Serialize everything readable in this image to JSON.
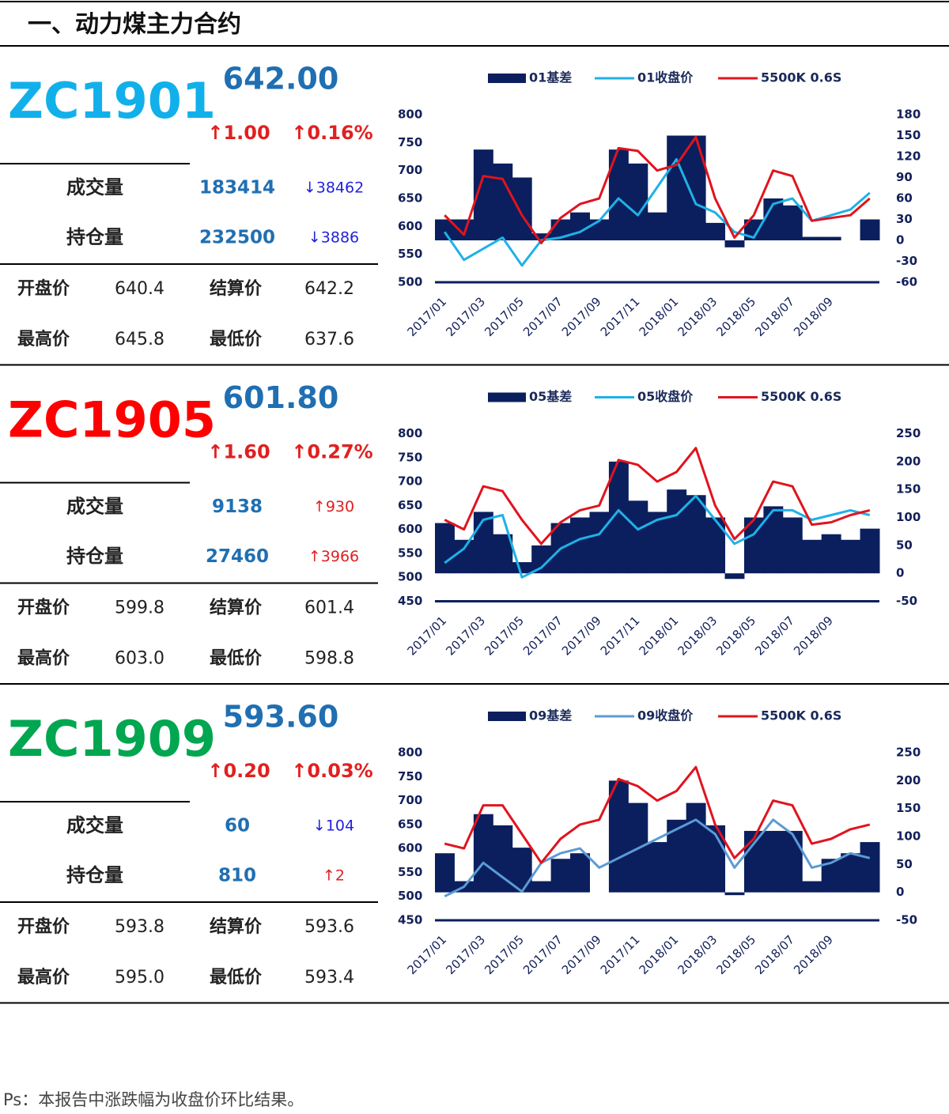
{
  "header": {
    "title": "一、动力煤主力合约"
  },
  "panels": [
    {
      "code": "ZC1901",
      "code_color": "#12b0ea",
      "price": "642.00",
      "change": "↑1.00",
      "change_pct": "↑0.16%",
      "rows": [
        {
          "label": "成交量",
          "value": "183414",
          "delta": "↓38462",
          "delta_color": "#2222dd"
        },
        {
          "label": "持仓量",
          "value": "232500",
          "delta": "↓3886",
          "delta_color": "#2222dd"
        }
      ],
      "prices": [
        [
          "开盘价",
          "640.4",
          "结算价",
          "642.2"
        ],
        [
          "最高价",
          "645.8",
          "最低价",
          "637.6"
        ]
      ]
    },
    {
      "code": "ZC1905",
      "code_color": "#ff0000",
      "price": "601.80",
      "change": "↑1.60",
      "change_pct": "↑0.27%",
      "rows": [
        {
          "label": "成交量",
          "value": "9138",
          "delta": "↑930",
          "delta_color": "#e02020"
        },
        {
          "label": "持仓量",
          "value": "27460",
          "delta": "↑3966",
          "delta_color": "#e02020"
        }
      ],
      "prices": [
        [
          "开盘价",
          "599.8",
          "结算价",
          "601.4"
        ],
        [
          "最高价",
          "603.0",
          "最低价",
          "598.8"
        ]
      ]
    },
    {
      "code": "ZC1909",
      "code_color": "#00a650",
      "price": "593.60",
      "change": "↑0.20",
      "change_pct": "↑0.03%",
      "rows": [
        {
          "label": "成交量",
          "value": "60",
          "delta": "↓104",
          "delta_color": "#2222dd"
        },
        {
          "label": "持仓量",
          "value": "810",
          "delta": "↑2",
          "delta_color": "#e02020"
        }
      ],
      "prices": [
        [
          "开盘价",
          "593.8",
          "结算价",
          "593.6"
        ],
        [
          "最高价",
          "595.0",
          "最低价",
          "593.4"
        ]
      ]
    }
  ],
  "chart_data": [
    {
      "type": "combo",
      "categories": [
        "2017/01",
        null,
        "2017/03",
        null,
        "2017/05",
        null,
        "2017/07",
        null,
        "2017/09",
        null,
        "2017/11",
        null,
        "2018/01",
        null,
        "2018/03",
        null,
        "2018/05",
        null,
        "2018/07",
        null,
        "2018/09",
        null,
        null
      ],
      "ylim": [
        500,
        800
      ],
      "yticks": [
        500,
        550,
        600,
        650,
        700,
        750,
        800
      ],
      "y2lim": [
        -60,
        180
      ],
      "y2ticks": [
        -60,
        -30,
        0,
        30,
        60,
        90,
        120,
        150,
        180
      ],
      "series": [
        {
          "name": "01基差",
          "kind": "bar",
          "axis": "y2",
          "color": "#0b1f5e",
          "values": [
            30,
            30,
            130,
            110,
            90,
            10,
            30,
            40,
            30,
            130,
            110,
            40,
            150,
            150,
            25,
            -10,
            30,
            60,
            50,
            5,
            5,
            0,
            30
          ]
        },
        {
          "name": "01收盘价",
          "kind": "line",
          "color": "#1fb1e6",
          "values": [
            590,
            540,
            560,
            580,
            530,
            575,
            580,
            590,
            610,
            650,
            620,
            670,
            720,
            640,
            625,
            590,
            580,
            640,
            650,
            610,
            620,
            630,
            660
          ]
        },
        {
          "name": "5500K 0.6S",
          "kind": "line",
          "color": "#e0141e",
          "values": [
            620,
            585,
            690,
            685,
            620,
            570,
            615,
            640,
            650,
            740,
            735,
            700,
            710,
            760,
            650,
            580,
            620,
            700,
            690,
            610,
            615,
            620,
            650
          ]
        }
      ]
    },
    {
      "type": "combo",
      "categories": [
        "2017/01",
        null,
        "2017/03",
        null,
        "2017/05",
        null,
        "2017/07",
        null,
        "2017/09",
        null,
        "2017/11",
        null,
        "2018/01",
        null,
        "2018/03",
        null,
        "2018/05",
        null,
        "2018/07",
        null,
        "2018/09",
        null,
        null
      ],
      "ylim": [
        450,
        800
      ],
      "yticks": [
        450,
        500,
        550,
        600,
        650,
        700,
        750,
        800
      ],
      "y2lim": [
        -50,
        250
      ],
      "y2ticks": [
        -50,
        0,
        50,
        100,
        150,
        200,
        250
      ],
      "series": [
        {
          "name": "05基差",
          "kind": "bar",
          "axis": "y2",
          "color": "#0b1f5e",
          "values": [
            90,
            60,
            110,
            70,
            20,
            50,
            90,
            100,
            110,
            200,
            130,
            110,
            150,
            140,
            100,
            -10,
            100,
            120,
            100,
            60,
            70,
            60,
            80
          ]
        },
        {
          "name": "05收盘价",
          "kind": "line",
          "color": "#1fb1e6",
          "values": [
            530,
            560,
            620,
            630,
            500,
            520,
            560,
            580,
            590,
            640,
            600,
            620,
            630,
            670,
            620,
            570,
            590,
            640,
            640,
            620,
            630,
            640,
            630
          ]
        },
        {
          "name": "5500K 0.6S",
          "kind": "line",
          "color": "#e0141e",
          "values": [
            620,
            600,
            690,
            680,
            620,
            570,
            615,
            640,
            650,
            745,
            735,
            700,
            720,
            770,
            650,
            580,
            620,
            700,
            690,
            610,
            615,
            630,
            640
          ]
        }
      ]
    },
    {
      "type": "combo",
      "categories": [
        "2017/01",
        null,
        "2017/03",
        null,
        "2017/05",
        null,
        "2017/07",
        null,
        "2017/09",
        null,
        "2017/11",
        null,
        "2018/01",
        null,
        "2018/03",
        null,
        "2018/05",
        null,
        "2018/07",
        null,
        "2018/09",
        null,
        null
      ],
      "ylim": [
        450,
        800
      ],
      "yticks": [
        450,
        500,
        550,
        600,
        650,
        700,
        750,
        800
      ],
      "y2lim": [
        -50,
        250
      ],
      "y2ticks": [
        -50,
        0,
        50,
        100,
        150,
        200,
        250
      ],
      "series": [
        {
          "name": "09基差",
          "kind": "bar",
          "axis": "y2",
          "color": "#0b1f5e",
          "values": [
            70,
            20,
            140,
            120,
            80,
            20,
            60,
            70,
            0,
            200,
            160,
            90,
            130,
            160,
            120,
            -5,
            110,
            110,
            110,
            20,
            60,
            70,
            90
          ]
        },
        {
          "name": "09收盘价",
          "kind": "line",
          "color": "#5b9bd5",
          "values": [
            500,
            520,
            570,
            540,
            510,
            570,
            590,
            600,
            560,
            580,
            600,
            620,
            640,
            660,
            630,
            560,
            610,
            660,
            630,
            560,
            570,
            590,
            580
          ]
        },
        {
          "name": "5500K 0.6S",
          "kind": "line",
          "color": "#e0141e",
          "values": [
            610,
            600,
            690,
            690,
            630,
            570,
            620,
            650,
            660,
            745,
            730,
            700,
            720,
            770,
            650,
            580,
            620,
            700,
            690,
            610,
            620,
            640,
            650
          ]
        }
      ]
    }
  ],
  "footnote": "Ps：本报告中涨跌幅为收盘价环比结果。"
}
